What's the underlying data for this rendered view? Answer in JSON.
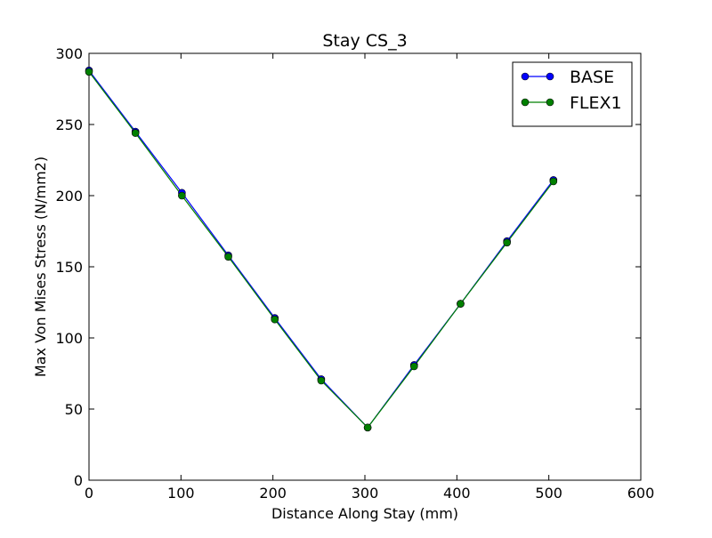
{
  "chart_data": {
    "type": "line",
    "title": "Stay CS_3",
    "xlabel": "Distance Along Stay (mm)",
    "ylabel": "Max Von Mises Stress (N/mm2)",
    "xlim": [
      0,
      600
    ],
    "ylim": [
      0,
      300
    ],
    "xticks": [
      "0",
      "100",
      "200",
      "300",
      "400",
      "500",
      "600"
    ],
    "yticks": [
      "0",
      "50",
      "100",
      "150",
      "200",
      "250",
      "300"
    ],
    "grid": false,
    "legend_position": "top-right",
    "series": [
      {
        "name": "BASE",
        "color": "#0000ff",
        "marker": "circle",
        "x": [
          0,
          50.5,
          101,
          151.5,
          202,
          252.5,
          303,
          353.5,
          404,
          454.5,
          505
        ],
        "y": [
          288,
          245,
          202,
          158,
          114,
          71,
          37,
          81,
          124,
          168,
          211
        ]
      },
      {
        "name": "FLEX1",
        "color": "#008000",
        "marker": "circle",
        "x": [
          0,
          50.5,
          101,
          151.5,
          202,
          252.5,
          303,
          353.5,
          404,
          454.5,
          505
        ],
        "y": [
          287,
          244,
          200,
          157,
          113,
          70,
          37,
          80,
          124,
          167,
          210
        ]
      }
    ]
  }
}
